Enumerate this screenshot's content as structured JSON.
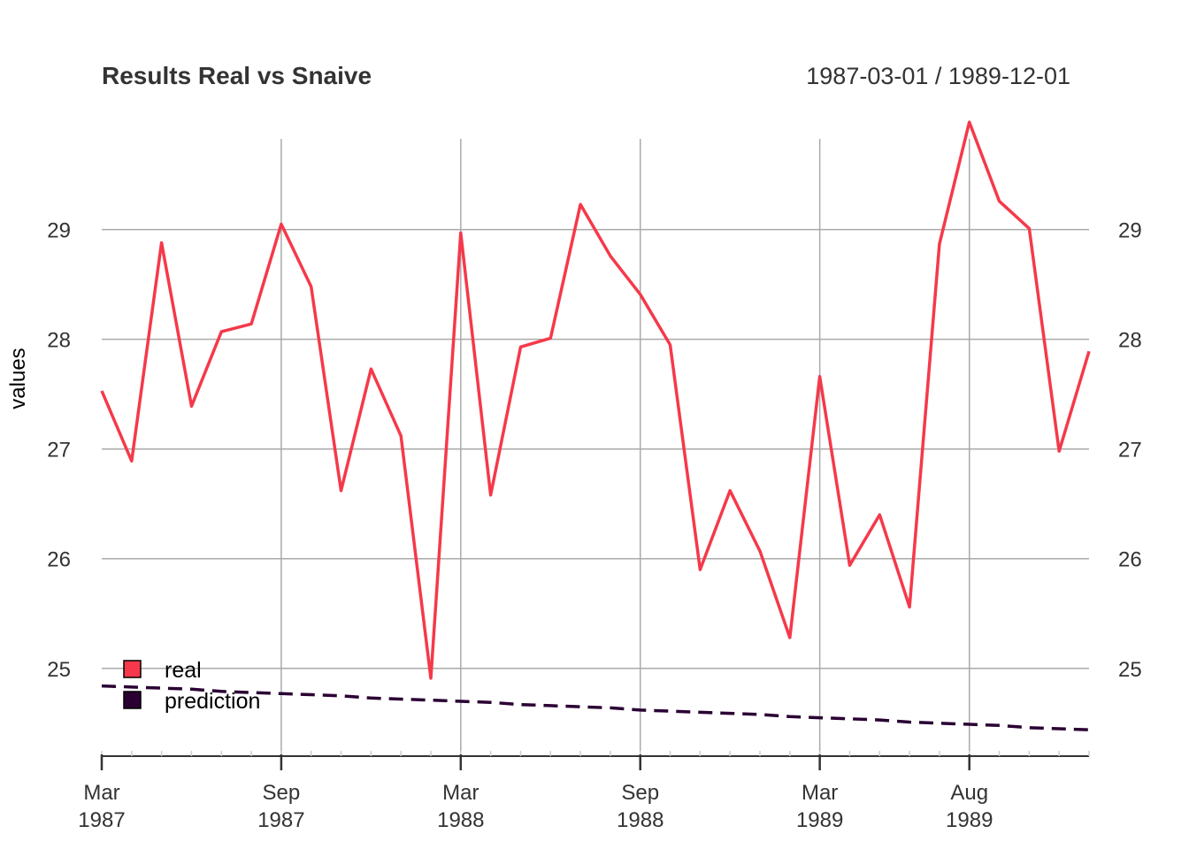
{
  "chart_data": {
    "type": "line",
    "title": "Results Real vs Snaive",
    "date_range": "1987-03-01 / 1989-12-01",
    "ylabel": "values",
    "xlabel": "",
    "ylim": [
      24.2,
      29.9
    ],
    "y_ticks": [
      25,
      26,
      27,
      28,
      29
    ],
    "x_range": [
      "1987-03-01",
      "1989-12-01"
    ],
    "x_ticks": [
      {
        "date": "1987-03-01",
        "month": "Mar",
        "year": "1987"
      },
      {
        "date": "1987-09-01",
        "month": "Sep",
        "year": "1987"
      },
      {
        "date": "1988-03-01",
        "month": "Mar",
        "year": "1988"
      },
      {
        "date": "1988-09-01",
        "month": "Sep",
        "year": "1988"
      },
      {
        "date": "1989-03-01",
        "month": "Mar",
        "year": "1989"
      },
      {
        "date": "1989-08-01",
        "month": "Aug",
        "year": "1989"
      }
    ],
    "grid": true,
    "legend": "bottom-left",
    "x": [
      "1987-03-01",
      "1987-04-01",
      "1987-05-01",
      "1987-06-01",
      "1987-07-01",
      "1987-08-01",
      "1987-09-01",
      "1987-10-01",
      "1987-11-01",
      "1987-12-01",
      "1988-01-01",
      "1988-02-01",
      "1988-03-01",
      "1988-04-01",
      "1988-05-01",
      "1988-06-01",
      "1988-07-01",
      "1988-08-01",
      "1988-09-01",
      "1988-10-01",
      "1988-11-01",
      "1988-12-01",
      "1989-01-01",
      "1989-02-01",
      "1989-03-01",
      "1989-04-01",
      "1989-05-01",
      "1989-06-01",
      "1989-07-01",
      "1989-08-01",
      "1989-09-01",
      "1989-10-01",
      "1989-11-01",
      "1989-12-01"
    ],
    "series": [
      {
        "name": "real",
        "color": "#f5394a",
        "style": "solid",
        "values": [
          27.53,
          26.89,
          28.88,
          27.39,
          28.07,
          28.14,
          29.05,
          28.48,
          26.62,
          27.73,
          27.12,
          24.91,
          28.97,
          26.58,
          27.93,
          28.01,
          29.23,
          28.76,
          28.41,
          27.95,
          25.9,
          26.62,
          26.07,
          25.28,
          27.66,
          25.94,
          26.4,
          25.56,
          28.87,
          29.98,
          29.26,
          29.01,
          26.98,
          27.89
        ]
      },
      {
        "name": "prediction",
        "color": "#2a0033",
        "style": "dashed",
        "values": [
          24.84,
          24.83,
          24.82,
          24.81,
          24.79,
          24.78,
          24.77,
          24.76,
          24.75,
          24.73,
          24.72,
          24.71,
          24.7,
          24.69,
          24.67,
          24.66,
          24.65,
          24.64,
          24.62,
          24.61,
          24.6,
          24.59,
          24.58,
          24.56,
          24.55,
          24.54,
          24.53,
          24.51,
          24.5,
          24.49,
          24.48,
          24.46,
          24.45,
          24.44
        ]
      }
    ]
  }
}
